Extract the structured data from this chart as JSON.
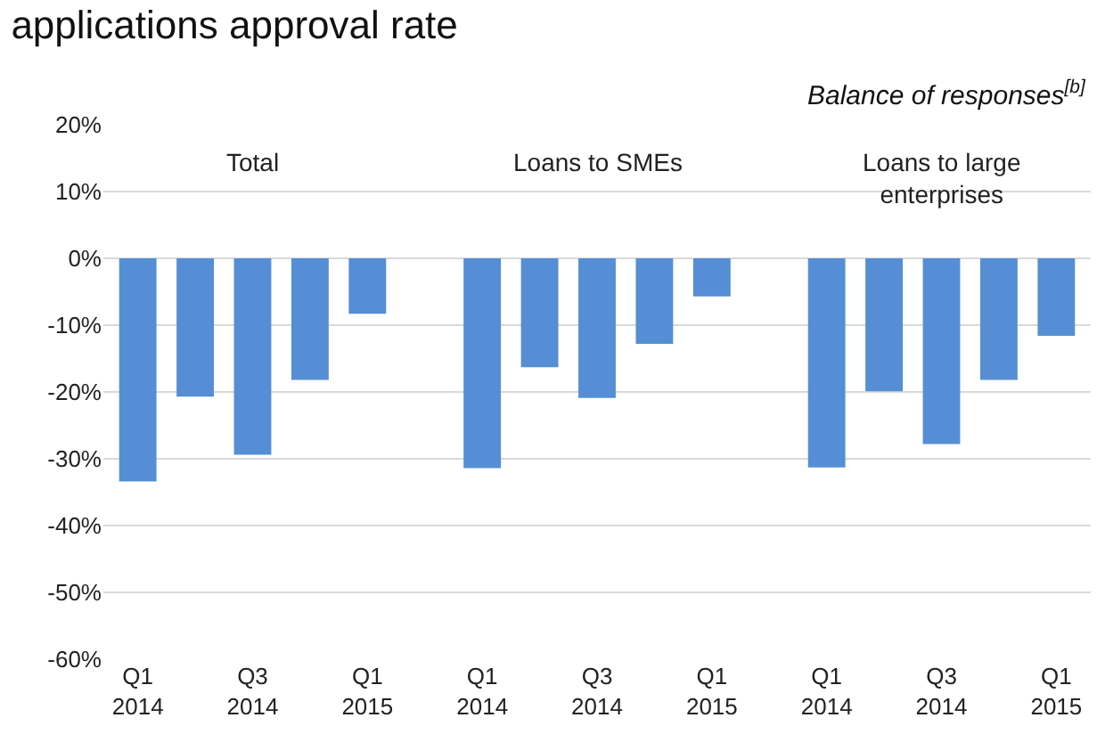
{
  "chart_data": {
    "type": "bar",
    "title": "applications approval rate",
    "subtitle": "Balance of responses$^{[b]}$",
    "categories": [
      "Q1\n2014",
      null,
      "Q3\n2014",
      null,
      "Q1\n2015",
      null,
      "Q1\n2014",
      null,
      "Q3\n2014",
      null,
      "Q1\n2015",
      null,
      "Q1\n2014",
      null,
      "Q3\n2014",
      null,
      "Q1\n2015"
    ],
    "values": [
      -33.4,
      -20.7,
      -29.4,
      -18.2,
      -8.3,
      null,
      -31.4,
      -16.3,
      -20.9,
      -12.8,
      -5.7,
      null,
      -31.3,
      -19.9,
      -27.8,
      -18.2,
      -11.6
    ],
    "color": "#558ed5",
    "annotations": [
      "Total",
      "Loans to SMEs",
      "Loans to large\nenterprises"
    ],
    "ylim": [
      -60,
      20
    ],
    "yticks": [
      {
        "value": -60,
        "label": "-60%"
      },
      {
        "value": -50,
        "label": "-50%"
      },
      {
        "value": -40,
        "label": "-40%"
      },
      {
        "value": -30,
        "label": "-30%"
      },
      {
        "value": -20,
        "label": "-20%"
      },
      {
        "value": -10,
        "label": "-10%"
      },
      {
        "value": 0,
        "label": "0%"
      },
      {
        "value": 10,
        "label": "10%"
      },
      {
        "value": 20,
        "label": "20%"
      }
    ],
    "grid": "y"
  }
}
